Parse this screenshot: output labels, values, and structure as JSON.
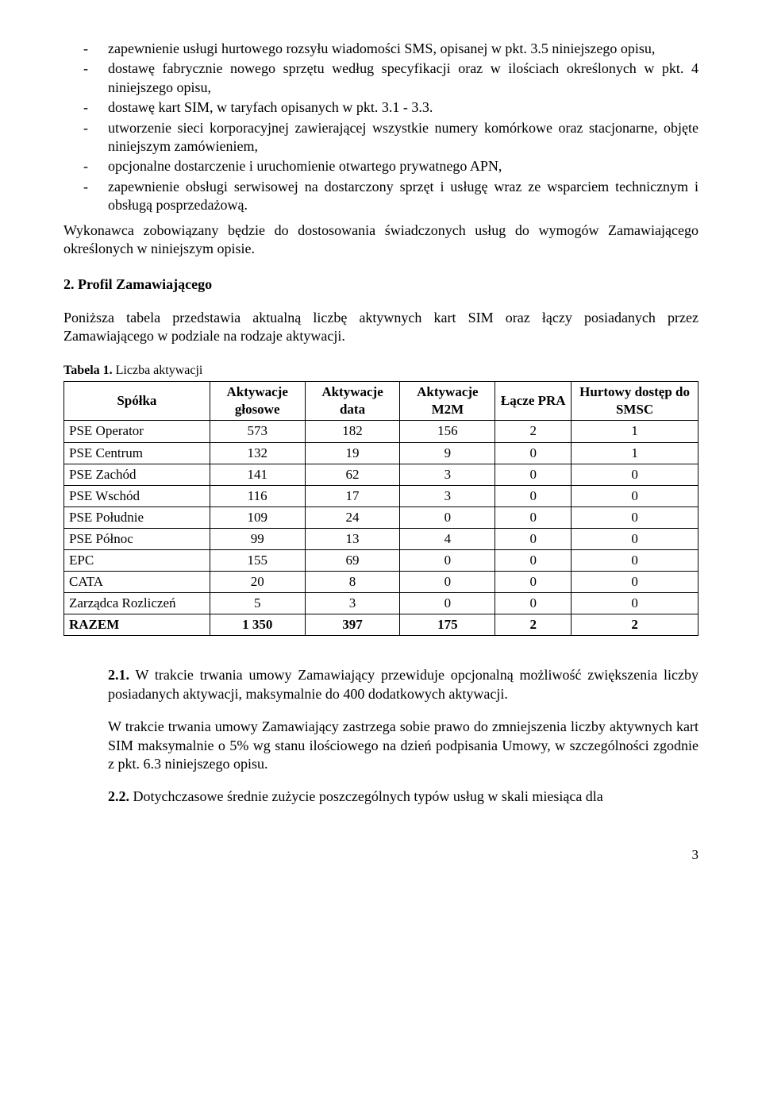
{
  "bullets": [
    "zapewnienie usługi hurtowego rozsyłu wiadomości SMS, opisanej w pkt. 3.5 niniejszego opisu,",
    "dostawę fabrycznie nowego sprzętu według specyfikacji oraz w ilościach określonych w pkt. 4 niniejszego opisu,",
    "dostawę kart SIM, w taryfach opisanych w pkt. 3.1 - 3.3.",
    "utworzenie sieci korporacyjnej zawierającej wszystkie numery komórkowe oraz stacjonarne, objęte niniejszym zamówieniem,",
    "opcjonalne dostarczenie i uruchomienie otwartego prywatnego APN,",
    "zapewnienie obsługi serwisowej na dostarczony sprzęt i usługę wraz ze wsparciem technicznym i obsługą posprzedażową."
  ],
  "para1": "Wykonawca zobowiązany będzie do dostosowania świadczonych usług do wymogów Zamawiającego określonych w niniejszym opisie.",
  "h2": "2. Profil Zamawiającego",
  "para2": "Poniższa tabela przedstawia aktualną liczbę aktywnych kart SIM oraz łączy posiadanych przez Zamawiającego w podziale na rodzaje aktywacji.",
  "table_caption_prefix": "Tabela 1. ",
  "table_caption": "Liczba aktywacji",
  "table": {
    "columns": [
      "Spółka",
      "Aktywacje głosowe",
      "Aktywacje data",
      "Aktywacje M2M",
      "Łącze PRA",
      "Hurtowy dostęp do SMSC"
    ],
    "col_widths": [
      "23%",
      "15%",
      "15%",
      "15%",
      "12%",
      "20%"
    ],
    "rows": [
      [
        "PSE Operator",
        "573",
        "182",
        "156",
        "2",
        "1"
      ],
      [
        "PSE Centrum",
        "132",
        "19",
        "9",
        "0",
        "1"
      ],
      [
        "PSE Zachód",
        "141",
        "62",
        "3",
        "0",
        "0"
      ],
      [
        "PSE Wschód",
        "116",
        "17",
        "3",
        "0",
        "0"
      ],
      [
        "PSE Południe",
        "109",
        "24",
        "0",
        "0",
        "0"
      ],
      [
        "PSE Północ",
        "99",
        "13",
        "4",
        "0",
        "0"
      ],
      [
        "EPC",
        "155",
        "69",
        "0",
        "0",
        "0"
      ],
      [
        "CATA",
        "20",
        "8",
        "0",
        "0",
        "0"
      ],
      [
        "Zarządca Rozliczeń",
        "5",
        "3",
        "0",
        "0",
        "0"
      ]
    ],
    "total": [
      "RAZEM",
      "1 350",
      "397",
      "175",
      "2",
      "2"
    ]
  },
  "sub21_num": "2.1.",
  "sub21_a": " W trakcie trwania umowy Zamawiający przewiduje opcjonalną możliwość zwiększenia liczby posiadanych aktywacji, maksymalnie do 400 dodatkowych aktywacji.",
  "sub21_b": "W trakcie trwania umowy Zamawiający zastrzega sobie prawo do zmniejszenia liczby aktywnych kart SIM maksymalnie o 5% wg stanu ilościowego na dzień podpisania Umowy, w szczególności zgodnie z pkt. 6.3 niniejszego opisu.",
  "sub22_num": "2.2.",
  "sub22": " Dotychczasowe średnie zużycie poszczególnych typów usług w skali miesiąca dla",
  "page_num": "3"
}
